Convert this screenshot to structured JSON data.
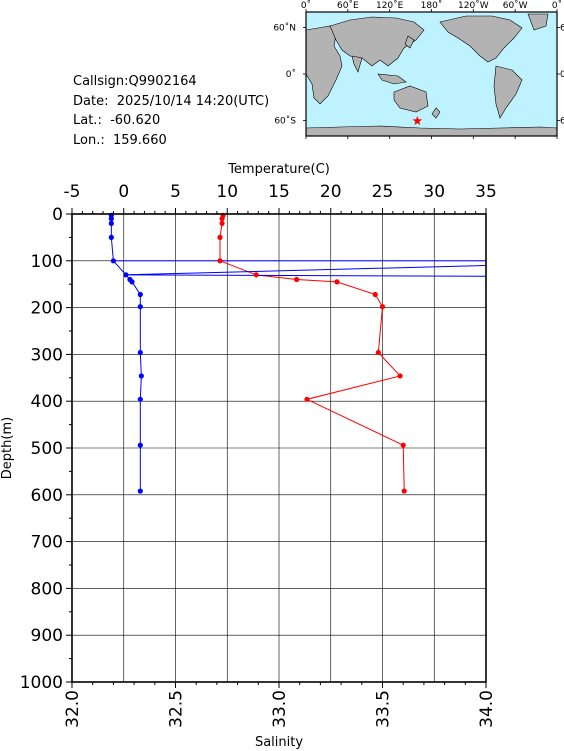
{
  "station": {
    "callsign": "Callsign:Q9902164",
    "date": "Date:  2025/10/14 14:20(UTC)",
    "lat": "Lat.:  -60.620",
    "lon": "Lon.:  159.660"
  },
  "map": {
    "top_labels": [
      "0˚",
      "60˚E",
      "120˚E",
      "180˚",
      "120˚W",
      "60˚W",
      "0˚"
    ],
    "side_labels": [
      "60˚N",
      "0˚",
      "60˚S"
    ],
    "colors": {
      "ocean": "#bff2ff",
      "land": "#b3b3b3",
      "marker": "#ff0000"
    },
    "marker_icon": "star-icon",
    "marker_lon": 159.66,
    "marker_lat": -60.62
  },
  "chart_data": {
    "type": "line",
    "top_axis_label": "Temperature(C)",
    "bottom_axis_label": "Salinity",
    "left_axis_label": "Depth(m)",
    "temperature_range": [
      -5,
      35
    ],
    "temperature_ticks": [
      "-5",
      "0",
      "5",
      "10",
      "15",
      "20",
      "25",
      "30",
      "35"
    ],
    "salinity_range": [
      32.0,
      34.0
    ],
    "salinity_ticks": [
      "32.0",
      "32.5",
      "33.0",
      "33.5",
      "34.0"
    ],
    "depth_range": [
      0,
      1000
    ],
    "depth_ticks": [
      "0",
      "100",
      "200",
      "300",
      "400",
      "500",
      "600",
      "700",
      "800",
      "900",
      "1000"
    ],
    "grid": true,
    "series": [
      {
        "color": "#ff0000",
        "axis": "temperature",
        "depth": [
          3,
          10,
          20,
          50,
          100,
          130,
          140,
          145,
          172,
          198,
          296,
          346,
          396,
          494,
          592
        ],
        "values": [
          9.6,
          9.5,
          9.5,
          9.3,
          9.3,
          12.8,
          16.7,
          20.6,
          24.3,
          25.0,
          24.6,
          26.7,
          17.7,
          27.0,
          27.1
        ]
      },
      {
        "color": "#0000ff",
        "axis": "salinity",
        "depth": [
          3,
          10,
          20,
          50,
          100,
          130,
          140,
          145,
          172,
          198,
          296,
          346,
          396,
          494,
          592
        ],
        "values": [
          32.19,
          32.19,
          32.19,
          32.19,
          32.2,
          32.26,
          32.28,
          32.29,
          32.33,
          32.33,
          32.33,
          32.335,
          32.33,
          32.33,
          32.33
        ]
      }
    ],
    "connectors": [
      {
        "color": "#0000ff",
        "from": {
          "axis": "salinity",
          "value": 32.2,
          "depth": 100
        },
        "to": {
          "axis": "salinity",
          "value": 34.0,
          "depth": 100
        }
      },
      {
        "color": "#0000ff",
        "from": {
          "axis": "salinity",
          "value": 34.0,
          "depth": 110
        },
        "to": {
          "axis": "salinity",
          "value": 32.26,
          "depth": 130
        }
      },
      {
        "color": "#0000ff",
        "from": {
          "axis": "salinity",
          "value": 32.26,
          "depth": 130
        },
        "to": {
          "axis": "salinity",
          "value": 34.0,
          "depth": 133
        }
      }
    ]
  }
}
